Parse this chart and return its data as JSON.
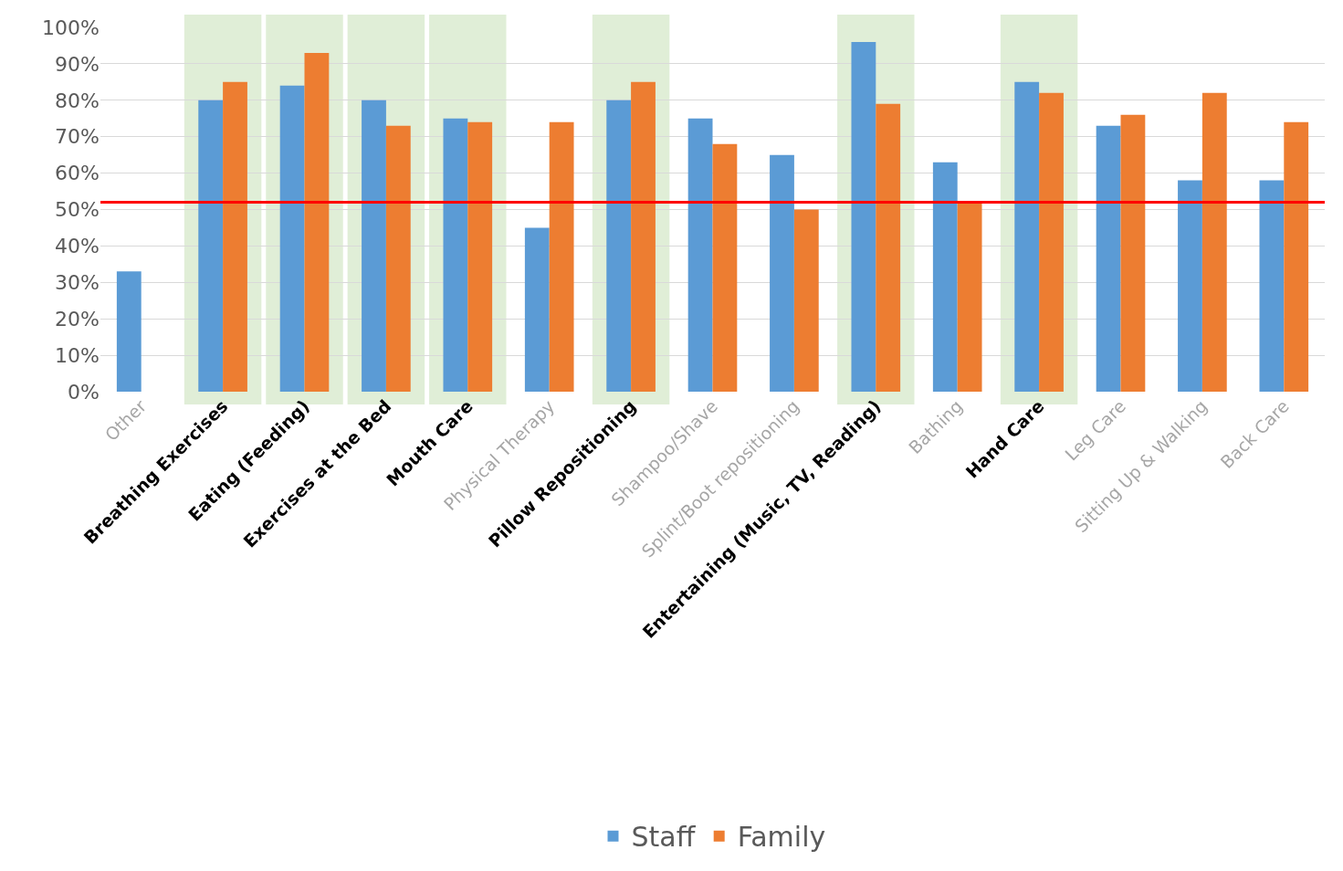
{
  "chart_data": {
    "type": "bar",
    "categories": [
      "Other",
      "Breathing Exercises",
      "Eating (Feeding)",
      "Exercises at the Bed",
      "Mouth Care",
      "Physical Therapy",
      "Pillow Repositioning",
      "Shampoo/Shave",
      "Splint/Boot repositioning",
      "Entertaining (Music, TV, Reading)",
      "Bathing",
      "Hand Care",
      "Leg Care",
      "Sitting Up & Walking",
      "Back Care"
    ],
    "series": [
      {
        "name": "Staff",
        "color": "#5b9bd5",
        "values": [
          33,
          80,
          84,
          80,
          75,
          45,
          80,
          75,
          65,
          96,
          63,
          85,
          73,
          58,
          58
        ]
      },
      {
        "name": "Family",
        "color": "#ed7d31",
        "values": [
          0,
          85,
          93,
          73,
          74,
          74,
          85,
          68,
          50,
          79,
          52,
          82,
          76,
          82,
          74
        ]
      }
    ],
    "ylim": [
      0,
      100
    ],
    "yticks": [
      {
        "value": 0,
        "label": "0%"
      },
      {
        "value": 10,
        "label": "10%"
      },
      {
        "value": 20,
        "label": "20%"
      },
      {
        "value": 30,
        "label": "30%"
      },
      {
        "value": 40,
        "label": "40%"
      },
      {
        "value": 50,
        "label": "50%"
      },
      {
        "value": 60,
        "label": "60%"
      },
      {
        "value": 70,
        "label": "70%"
      },
      {
        "value": 80,
        "label": "80%"
      },
      {
        "value": 90,
        "label": "90%"
      },
      {
        "value": 100,
        "label": "100%"
      }
    ],
    "ref_lines": [
      {
        "axis": "y",
        "value": 52,
        "color": "#ff0000"
      }
    ],
    "bands": [
      {
        "axis": "x",
        "from": "Breathing Exercises",
        "to": "Breathing Exercises",
        "color": "#a9d18e"
      },
      {
        "axis": "x",
        "from": "Eating (Feeding)",
        "to": "Eating (Feeding)",
        "color": "#a9d18e"
      },
      {
        "axis": "x",
        "from": "Exercises at the Bed",
        "to": "Exercises at the Bed",
        "color": "#a9d18e"
      },
      {
        "axis": "x",
        "from": "Mouth Care",
        "to": "Mouth Care",
        "color": "#a9d18e"
      },
      {
        "axis": "x",
        "from": "Pillow Repositioning",
        "to": "Pillow Repositioning",
        "color": "#a9d18e"
      },
      {
        "axis": "x",
        "from": "Entertaining (Music, TV, Reading)",
        "to": "Entertaining (Music, TV, Reading)",
        "color": "#a9d18e"
      },
      {
        "axis": "x",
        "from": "Hand Care",
        "to": "Hand Care",
        "color": "#a9d18e"
      }
    ],
    "grid": "y",
    "legend": "bottom"
  }
}
